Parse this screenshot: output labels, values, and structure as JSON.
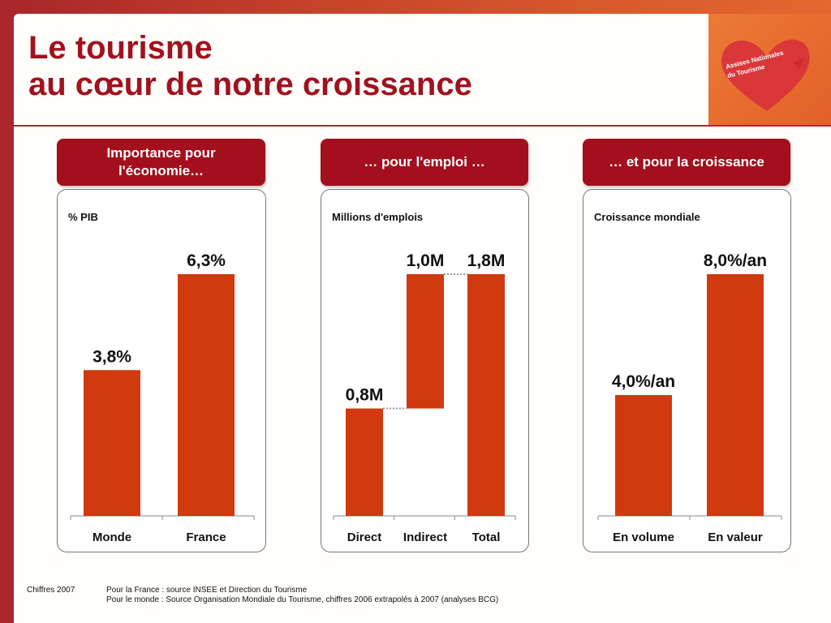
{
  "title": {
    "line1": "Le tourisme",
    "line2": "au cœur de notre croissance"
  },
  "logo": {
    "text": "Assises Nationales du Tourisme"
  },
  "colors": {
    "accent": "#a30f1c",
    "bar": "#d13a0e",
    "title": "#a0121e"
  },
  "panels": [
    {
      "header": "Importance pour l'économie…"
    },
    {
      "header": "… pour l'emploi …"
    },
    {
      "header": "… et pour la croissance"
    }
  ],
  "chart_data": [
    {
      "type": "bar",
      "ylabel": "% PIB",
      "categories": [
        "Monde",
        "France"
      ],
      "values": [
        3.8,
        6.3
      ],
      "value_labels": [
        "3,8%",
        "6,3%"
      ],
      "ylim": [
        0,
        6.3
      ]
    },
    {
      "type": "bar",
      "subtype": "waterfall",
      "ylabel": "Millions d'emplois",
      "categories": [
        "Direct",
        "Indirect",
        "Total"
      ],
      "values": [
        0.8,
        1.0,
        1.8
      ],
      "bases": [
        0,
        0.8,
        0
      ],
      "value_labels": [
        "0,8M",
        "1,0M",
        "1,8M"
      ],
      "ylim": [
        0,
        1.8
      ]
    },
    {
      "type": "bar",
      "ylabel": "Croissance mondiale",
      "categories": [
        "En volume",
        "En valeur"
      ],
      "values": [
        4.0,
        8.0
      ],
      "value_labels": [
        "4,0%/an",
        "8,0%/an"
      ],
      "ylim": [
        0,
        8.0
      ]
    }
  ],
  "footnote": {
    "label": "Chiffres 2007",
    "line1": "Pour la France : source INSEE et Direction du Tourisme",
    "line2": "Pour le monde : Source Organisation Mondiale du Tourisme, chiffres 2006 extrapolés à 2007 (analyses BCG)"
  }
}
